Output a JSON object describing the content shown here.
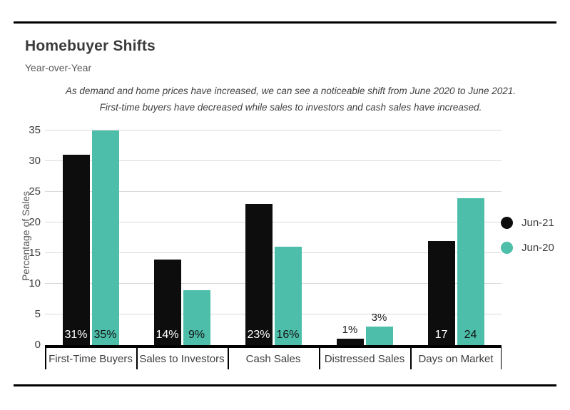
{
  "header": {
    "title": "Homebuyer Shifts",
    "subtitle": "Year-over-Year"
  },
  "annotation": {
    "line1": "As demand and home prices have increased, we can see a noticeable shift from June 2020 to June 2021.",
    "line2": "First-time buyers have decreased while sales to investors and cash sales have increased."
  },
  "chart_data": {
    "type": "bar",
    "title": "Homebuyer Shifts",
    "subtitle": "Year-over-Year",
    "ylabel": "Percentage of Sales",
    "xlabel": "",
    "ylim": [
      0,
      35
    ],
    "yticks": [
      0,
      5,
      10,
      15,
      20,
      25,
      30,
      35
    ],
    "grid": "horizontal",
    "legend_position": "right",
    "categories": [
      "First-Time Buyers",
      "Sales to Investors",
      "Cash Sales",
      "Distressed Sales",
      "Days on Market"
    ],
    "series": [
      {
        "name": "Jun-21",
        "color": "#0d0d0d",
        "values": [
          31,
          14,
          23,
          1,
          17
        ],
        "value_labels": [
          "31%",
          "14%",
          "23%",
          "1%",
          "17"
        ],
        "label_color_inside": "#ffffff"
      },
      {
        "name": "Jun-20",
        "color": "#4dbea9",
        "values": [
          35,
          9,
          16,
          3,
          24
        ],
        "value_labels": [
          "35%",
          "9%",
          "16%",
          "3%",
          "24"
        ],
        "label_color_inside": "#121212"
      }
    ]
  },
  "colors": {
    "accent_teal": "#4dbea9",
    "bar_black": "#0d0d0d",
    "gridline": "#d9d9d9",
    "text_dark": "#3d3d3d",
    "text_gray": "#595959",
    "rule_black": "#000000"
  }
}
